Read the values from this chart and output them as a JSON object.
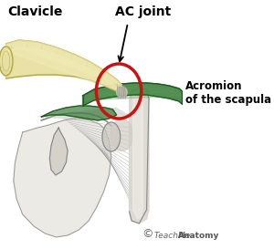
{
  "bg_color": "#ffffff",
  "clavicle_fill": "#e8e0a0",
  "clavicle_edge": "#b0a840",
  "clavicle_shadow": "#c8c080",
  "clavicle_light": "#f0ebb8",
  "acromion_fill": "#3a7a3a",
  "acromion_light": "#5a9a5a",
  "acromion_edge": "#1a5a1a",
  "circle_color": "#cc1111",
  "sketch_dark": "#555555",
  "sketch_mid": "#888888",
  "sketch_light": "#bbbbbb",
  "bone_fill": "#d8d4cc",
  "bone_light": "#eeeae4",
  "green_under": "#2a6a2a",
  "label_clavicle": "Clavicle",
  "label_ac": "AC joint",
  "label_acromion": "Acromion\nof the scapula",
  "figsize": [
    3.0,
    2.73
  ],
  "dpi": 100
}
